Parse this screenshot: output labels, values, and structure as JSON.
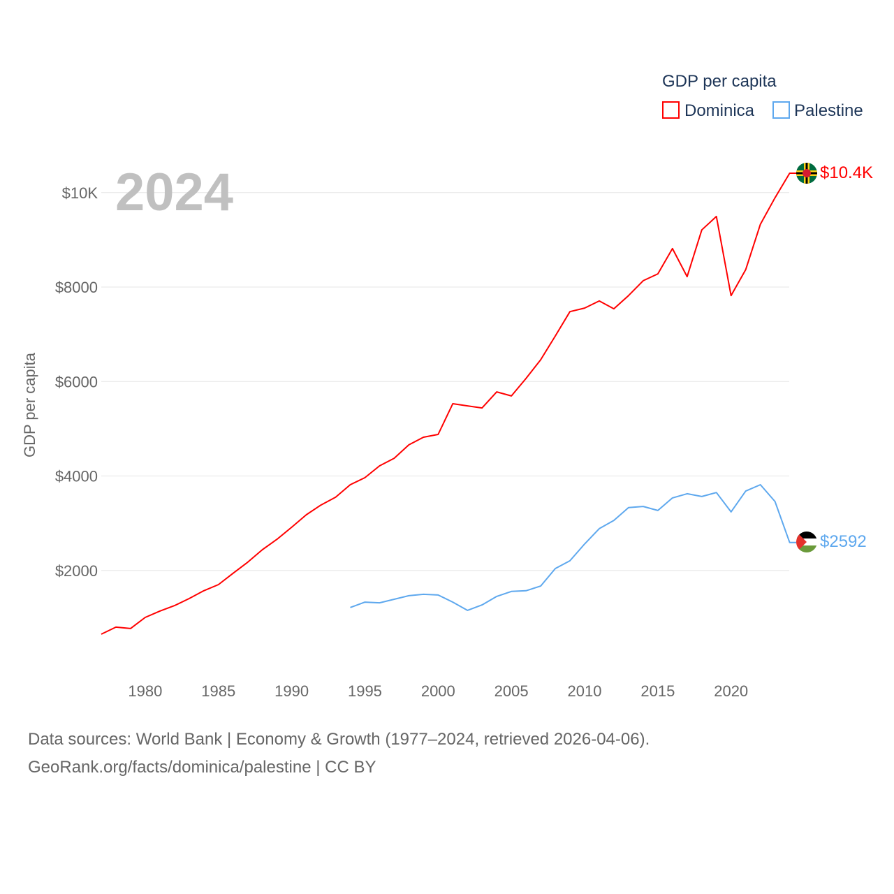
{
  "chart_data": {
    "type": "line",
    "title": "GDP per capita",
    "year_label": "2024",
    "ylabel": "GDP per capita",
    "xlabel": "",
    "xlim": [
      1977,
      2024
    ],
    "ylim": [
      0,
      10500
    ],
    "x_ticks": [
      1980,
      1985,
      1990,
      1995,
      2000,
      2005,
      2010,
      2015,
      2020
    ],
    "x_tick_labels": [
      "1980",
      "1985",
      "1990",
      "1995",
      "2000",
      "2005",
      "2010",
      "2015",
      "2020"
    ],
    "y_ticks": [
      2000,
      4000,
      6000,
      8000,
      10000
    ],
    "y_tick_labels": [
      "$2000",
      "$4000",
      "$6000",
      "$8000",
      "$10K"
    ],
    "grid": true,
    "legend_position": "top-right",
    "series": [
      {
        "name": "Dominica",
        "color": "#ff0000",
        "end_label": "$10.4K",
        "x_start": 1977,
        "values": [
          650,
          800,
          770,
          1005,
          1140,
          1255,
          1405,
          1570,
          1700,
          1940,
          2175,
          2440,
          2660,
          2915,
          3180,
          3385,
          3550,
          3815,
          3965,
          4215,
          4375,
          4660,
          4820,
          4880,
          5530,
          5485,
          5440,
          5780,
          5695,
          6065,
          6460,
          6965,
          7480,
          7555,
          7705,
          7540,
          7820,
          8135,
          8280,
          8815,
          8220,
          9210,
          9495,
          7820,
          8370,
          9330,
          9890,
          10410
        ]
      },
      {
        "name": "Palestine",
        "color": "#5ea8ee",
        "end_label": "$2592",
        "x_start": 1994,
        "values": [
          1215,
          1330,
          1315,
          1390,
          1465,
          1495,
          1480,
          1330,
          1155,
          1270,
          1450,
          1555,
          1570,
          1670,
          2040,
          2205,
          2560,
          2885,
          3060,
          3330,
          3355,
          3270,
          3535,
          3625,
          3565,
          3650,
          3240,
          3680,
          3815,
          3460,
          2592
        ]
      }
    ]
  },
  "footer": {
    "line1": "Data sources: World Bank | Economy & Growth (1977–2024, retrieved 2026-04-06).",
    "line2": "GeoRank.org/facts/dominica/palestine | CC BY"
  }
}
